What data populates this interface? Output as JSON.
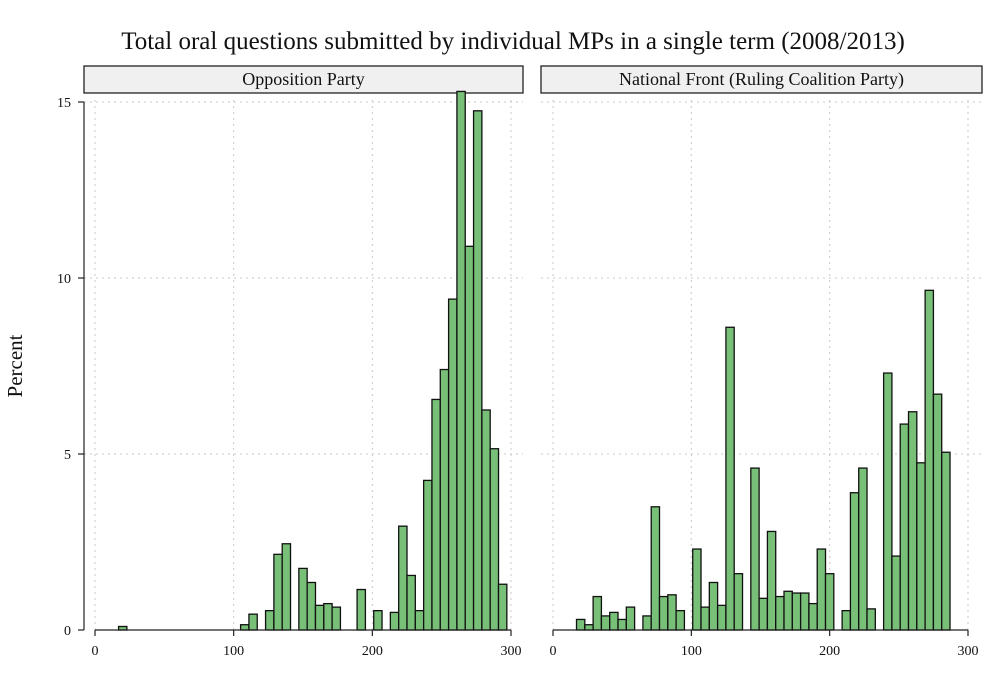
{
  "chart_data": {
    "type": "bar",
    "title": "Total oral questions submitted by individual MPs in a single term (2008/2013)",
    "ylabel": "Percent",
    "xlabel": "",
    "xlim": [
      0,
      300
    ],
    "ylim": [
      0,
      15
    ],
    "x_ticks": [
      0,
      100,
      200,
      300
    ],
    "y_ticks": [
      0,
      5,
      10,
      15
    ],
    "bin_width": 6,
    "grid": true,
    "panels": [
      {
        "name": "Opposition Party",
        "bars": [
          {
            "x": 20,
            "y": 0.1
          },
          {
            "x": 108,
            "y": 0.15
          },
          {
            "x": 114,
            "y": 0.45
          },
          {
            "x": 126,
            "y": 0.55
          },
          {
            "x": 132,
            "y": 2.15
          },
          {
            "x": 138,
            "y": 2.45
          },
          {
            "x": 150,
            "y": 1.75
          },
          {
            "x": 156,
            "y": 1.35
          },
          {
            "x": 162,
            "y": 0.7
          },
          {
            "x": 168,
            "y": 0.75
          },
          {
            "x": 174,
            "y": 0.65
          },
          {
            "x": 192,
            "y": 1.15
          },
          {
            "x": 204,
            "y": 0.55
          },
          {
            "x": 216,
            "y": 0.5
          },
          {
            "x": 222,
            "y": 2.95
          },
          {
            "x": 228,
            "y": 1.55
          },
          {
            "x": 234,
            "y": 0.55
          },
          {
            "x": 240,
            "y": 4.25
          },
          {
            "x": 246,
            "y": 6.55
          },
          {
            "x": 252,
            "y": 7.4
          },
          {
            "x": 258,
            "y": 9.4
          },
          {
            "x": 264,
            "y": 15.3
          },
          {
            "x": 270,
            "y": 10.9
          },
          {
            "x": 276,
            "y": 14.75
          },
          {
            "x": 282,
            "y": 6.25
          },
          {
            "x": 288,
            "y": 5.15
          },
          {
            "x": 294,
            "y": 1.3
          }
        ]
      },
      {
        "name": "National Front (Ruling Coalition Party)",
        "bars": [
          {
            "x": 20,
            "y": 0.3
          },
          {
            "x": 26,
            "y": 0.15
          },
          {
            "x": 32,
            "y": 0.95
          },
          {
            "x": 38,
            "y": 0.4
          },
          {
            "x": 44,
            "y": 0.5
          },
          {
            "x": 50,
            "y": 0.3
          },
          {
            "x": 56,
            "y": 0.65
          },
          {
            "x": 68,
            "y": 0.4
          },
          {
            "x": 74,
            "y": 3.5
          },
          {
            "x": 80,
            "y": 0.95
          },
          {
            "x": 86,
            "y": 1.0
          },
          {
            "x": 92,
            "y": 0.55
          },
          {
            "x": 104,
            "y": 2.3
          },
          {
            "x": 110,
            "y": 0.65
          },
          {
            "x": 116,
            "y": 1.35
          },
          {
            "x": 122,
            "y": 0.7
          },
          {
            "x": 128,
            "y": 8.6
          },
          {
            "x": 134,
            "y": 1.6
          },
          {
            "x": 146,
            "y": 4.6
          },
          {
            "x": 152,
            "y": 0.9
          },
          {
            "x": 158,
            "y": 2.8
          },
          {
            "x": 164,
            "y": 0.95
          },
          {
            "x": 170,
            "y": 1.1
          },
          {
            "x": 176,
            "y": 1.05
          },
          {
            "x": 182,
            "y": 1.05
          },
          {
            "x": 188,
            "y": 0.75
          },
          {
            "x": 194,
            "y": 2.3
          },
          {
            "x": 200,
            "y": 1.6
          },
          {
            "x": 212,
            "y": 0.55
          },
          {
            "x": 218,
            "y": 3.9
          },
          {
            "x": 224,
            "y": 4.6
          },
          {
            "x": 230,
            "y": 0.6
          },
          {
            "x": 242,
            "y": 7.3
          },
          {
            "x": 248,
            "y": 2.1
          },
          {
            "x": 254,
            "y": 5.85
          },
          {
            "x": 260,
            "y": 6.2
          },
          {
            "x": 266,
            "y": 4.75
          },
          {
            "x": 272,
            "y": 9.65
          },
          {
            "x": 278,
            "y": 6.7
          },
          {
            "x": 284,
            "y": 5.05
          }
        ]
      }
    ]
  }
}
